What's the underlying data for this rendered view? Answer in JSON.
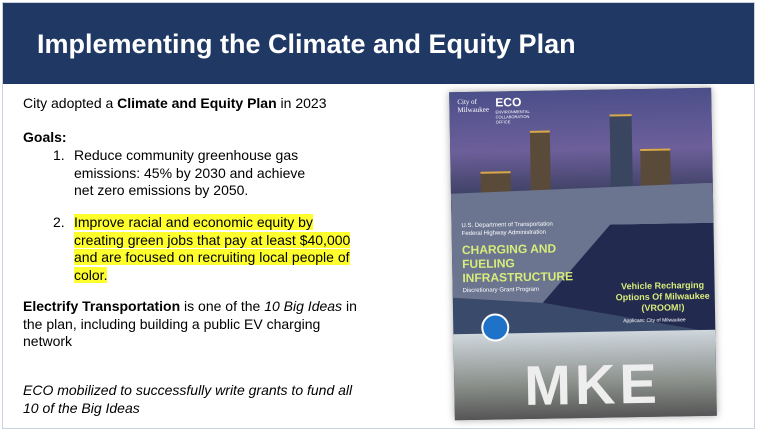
{
  "title": "Implementing the Climate and Equity Plan",
  "intro": {
    "pre": "City adopted a ",
    "bold": "Climate and Equity Plan",
    "post": " in 2023"
  },
  "goals_label": "Goals:",
  "goals": [
    {
      "num": "1.",
      "text": "Reduce community greenhouse gas emissions: 45% by 2030 and achieve net zero emissions by 2050."
    },
    {
      "num": "2.",
      "text": "Improve racial and economic equity by creating green jobs that pay at least $40,000 and are focused on recruiting local people of color.",
      "highlight_color": "#ffff2e"
    }
  ],
  "electrify": {
    "bold": "Electrify Transportation",
    "mid": " is one of the ",
    "italic": "10 Big Ideas",
    "post": " in the plan, including building a public EV charging network"
  },
  "eco_note": "ECO mobilized to successfully write grants to fund all 10 of the Big Ideas",
  "poster": {
    "city_logo": "City of Milwaukee",
    "eco_logo": "ECO",
    "eco_sub": "ENVIRONMENTAL COLLABORATION OFFICE",
    "agency1": "U.S. Department of Transportation",
    "agency2": "Federal Highway Administration",
    "program_title": "CHARGING AND FUELING INFRASTRUCTURE",
    "program_sub": "Discretionary Grant Program",
    "project": "Vehicle Recharging Options Of Milwaukee (VROOM!)",
    "applicant": "Applicant: City of Milwaukee",
    "mke": "MKE"
  },
  "colors": {
    "header": "#1f3864",
    "highlight": "#ffff2e"
  }
}
